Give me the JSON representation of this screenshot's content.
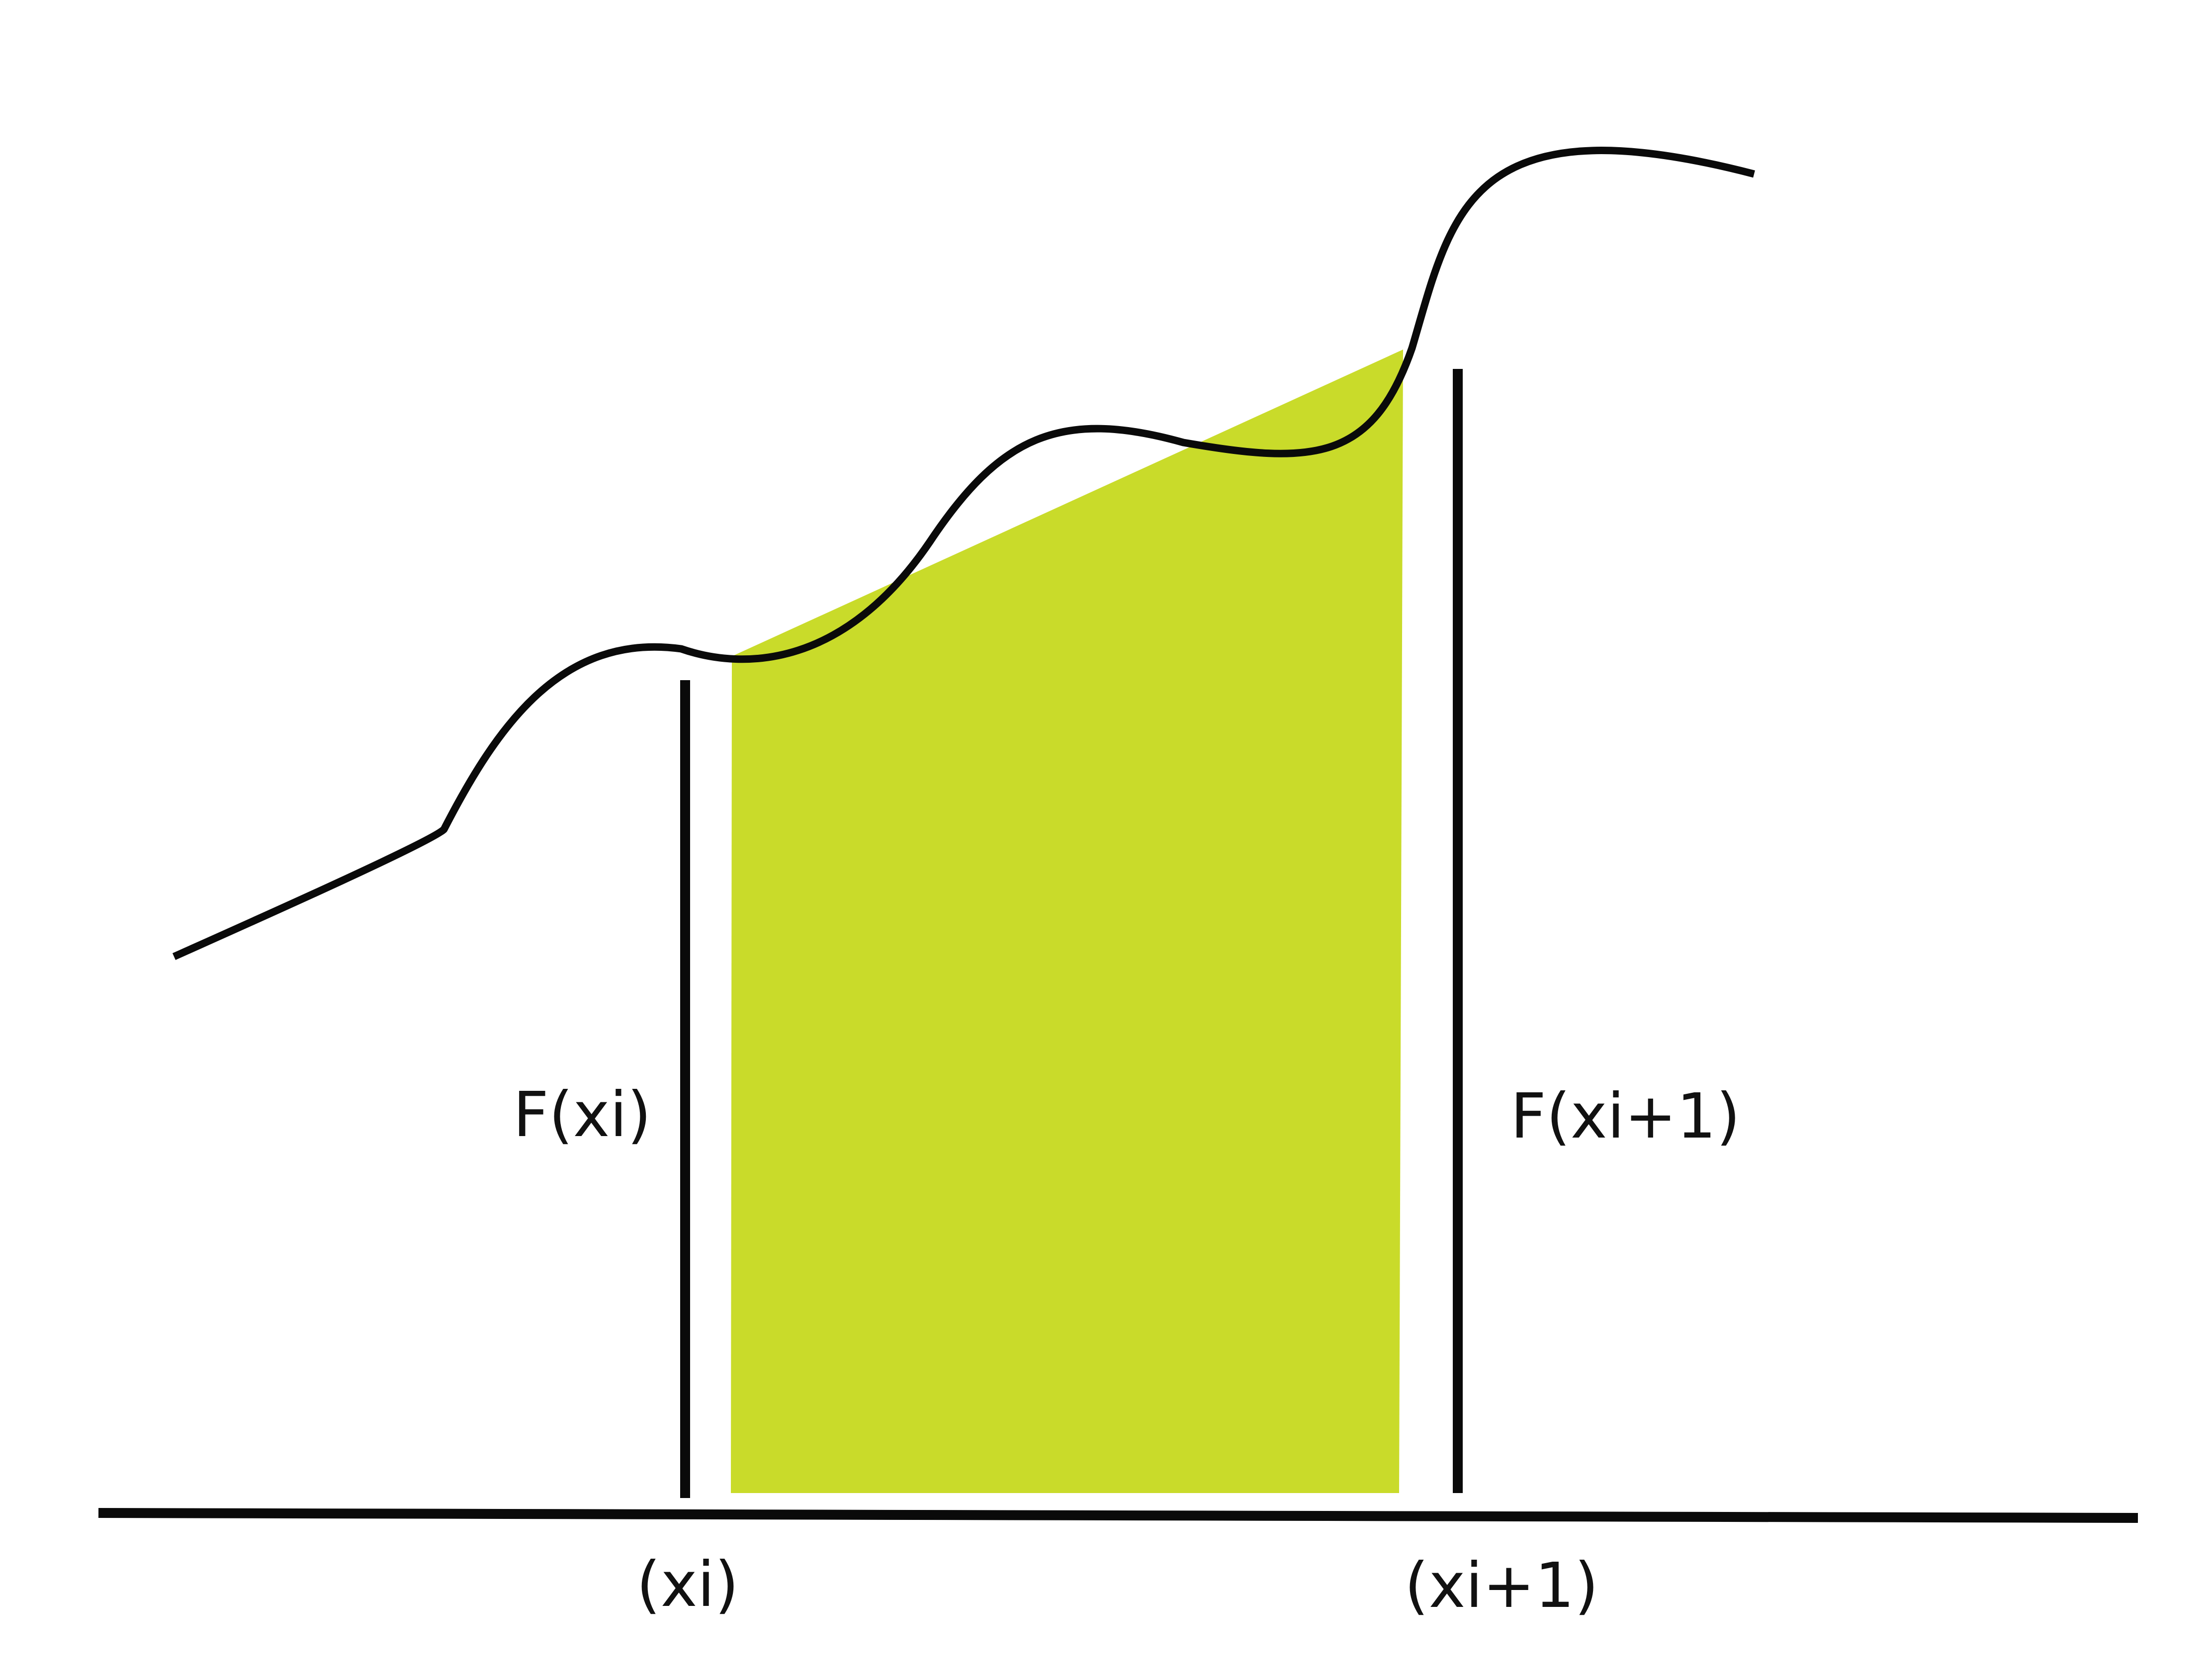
{
  "colors": {
    "background": "#ffffff",
    "curve": "#0a0a0a",
    "trapezoid_fill": "#c9db2a",
    "ordinate_line": "#0a0a0a",
    "axis": "#0a0a0a"
  },
  "labels": {
    "left_value": "F(xi)",
    "right_value": "F(xi+1)",
    "left_x": "(xi)",
    "right_x": "(xi+1)"
  }
}
